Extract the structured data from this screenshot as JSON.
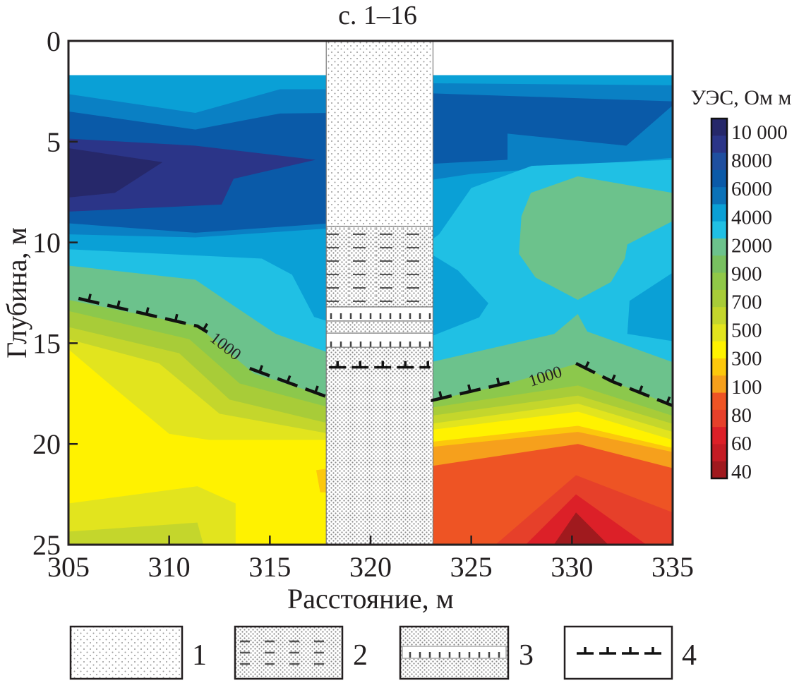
{
  "chart_data": {
    "type": "heatmap",
    "subtype": "filled-contour-section",
    "title": "с. 1–16",
    "xlabel": "Расстояние, м",
    "ylabel": "Глубина, м",
    "xlim": [
      305,
      335
    ],
    "ylim": [
      0,
      25
    ],
    "y_inverted": true,
    "xticks": [
      "305",
      "310",
      "315",
      "320",
      "325",
      "330",
      "335"
    ],
    "xtick_values": [
      305,
      310,
      315,
      320,
      325,
      330,
      335
    ],
    "yticks": [
      "0",
      "5",
      "10",
      "15",
      "20",
      "25"
    ],
    "ytick_values": [
      0,
      5,
      10,
      15,
      20,
      25
    ],
    "colorbar": {
      "title": "УЭС, Ом м",
      "labels": [
        "10 000",
        "8000",
        "6000",
        "4000",
        "2000",
        "900",
        "700",
        "500",
        "300",
        "100",
        "80",
        "60",
        "40"
      ],
      "colors": [
        "#26286a",
        "#2b3588",
        "#1f4f9f",
        "#0a5aa8",
        "#0b72b8",
        "#0aa0d6",
        "#20c0e4",
        "#6cc28c",
        "#78c060",
        "#90c848",
        "#a8cc38",
        "#c4d62c",
        "#e2e41e",
        "#fff200",
        "#fcc80c",
        "#f6a01c",
        "#ee5424",
        "#e6402a",
        "#dc2028",
        "#c41c24",
        "#a01a1e"
      ]
    },
    "level_colors": {
      "10000": "#26286a",
      "8000": "#2b3588",
      "6000": "#0a5aa8",
      "4000": "#0a80c4",
      "3000": "#0aa0d6",
      "2000": "#20c0e4",
      "1500": "#6cc28c",
      "900": "#8cc84c",
      "700": "#a8cc38",
      "600": "#c4d62c",
      "500": "#e2e41e",
      "400": "#fff200",
      "300": "#fcc80c",
      "200": "#f6a01c",
      "100": "#ee5424",
      "80": "#e6402a",
      "60": "#dc2028",
      "40": "#a01a1e"
    },
    "regions": [
      {
        "level": "3000",
        "points": [
          [
            305,
            1.7
          ],
          [
            318,
            1.7
          ],
          [
            318,
            25
          ],
          [
            305,
            25
          ]
        ]
      },
      {
        "level": "4000",
        "points": [
          [
            305,
            2.64
          ],
          [
            311.3,
            3.57
          ],
          [
            315.5,
            2.4
          ],
          [
            318,
            2.4
          ],
          [
            318,
            25
          ],
          [
            305,
            25
          ]
        ]
      },
      {
        "level": "6000",
        "points": [
          [
            305,
            3.5
          ],
          [
            311.3,
            4.4
          ],
          [
            315.5,
            3.6
          ],
          [
            318,
            3.57
          ],
          [
            318,
            25
          ],
          [
            305,
            25
          ]
        ]
      },
      {
        "level": "8000",
        "points": [
          [
            305,
            4.85
          ],
          [
            311.3,
            5.2
          ],
          [
            317.27,
            5.9
          ],
          [
            313.2,
            6.84
          ],
          [
            312.6,
            8.12
          ],
          [
            305,
            8.47
          ]
        ]
      },
      {
        "level": "10000",
        "points": [
          [
            305,
            5.32
          ],
          [
            309.67,
            6.02
          ],
          [
            307.3,
            7.54
          ],
          [
            305,
            7.77
          ]
        ]
      },
      {
        "level": "4000",
        "points": [
          [
            305,
            9.05
          ],
          [
            311.3,
            9.52
          ],
          [
            318,
            9.05
          ],
          [
            318,
            25
          ],
          [
            305,
            25
          ]
        ]
      },
      {
        "level": "3000",
        "points": [
          [
            305,
            9.6
          ],
          [
            311.3,
            9.75
          ],
          [
            318,
            9.3
          ],
          [
            318,
            25
          ],
          [
            305,
            25
          ]
        ]
      },
      {
        "level": "2000",
        "points": [
          [
            305,
            10.34
          ],
          [
            314.6,
            10.8
          ],
          [
            316.1,
            11.6
          ],
          [
            317.2,
            13.7
          ],
          [
            318,
            13.95
          ],
          [
            318,
            25
          ],
          [
            305,
            25
          ]
        ]
      },
      {
        "level": "1500",
        "points": [
          [
            305,
            11.15
          ],
          [
            311.3,
            11.85
          ],
          [
            313.2,
            13.14
          ],
          [
            315.3,
            14.54
          ],
          [
            318,
            15.5
          ],
          [
            318,
            25
          ],
          [
            305,
            25
          ]
        ]
      },
      {
        "level": "900",
        "points": [
          [
            305,
            12.85
          ],
          [
            311.4,
            14.15
          ],
          [
            314.2,
            16.5
          ],
          [
            318,
            17.7
          ],
          [
            318,
            25
          ],
          [
            305,
            25
          ]
        ]
      },
      {
        "level": "700",
        "points": [
          [
            305,
            13.4
          ],
          [
            311,
            14.8
          ],
          [
            313.5,
            17
          ],
          [
            318,
            18.2
          ],
          [
            318,
            25
          ],
          [
            305,
            25
          ]
        ]
      },
      {
        "level": "600",
        "points": [
          [
            305,
            14.2
          ],
          [
            310.5,
            15.5
          ],
          [
            313,
            17.8
          ],
          [
            318,
            19
          ],
          [
            318,
            25
          ],
          [
            305,
            25
          ]
        ]
      },
      {
        "level": "500",
        "points": [
          [
            305,
            14.8
          ],
          [
            309.5,
            16
          ],
          [
            312.5,
            18.5
          ],
          [
            318,
            19.5
          ],
          [
            318,
            25
          ],
          [
            305,
            25
          ]
        ]
      },
      {
        "level": "400",
        "points": [
          [
            305,
            15.3
          ],
          [
            307,
            17
          ],
          [
            310,
            19.5
          ],
          [
            312,
            19.8
          ],
          [
            318,
            19.8
          ],
          [
            318,
            25
          ],
          [
            305,
            25
          ]
        ]
      },
      {
        "level": "300",
        "points": [
          [
            317.3,
            21.3
          ],
          [
            318,
            21.2
          ],
          [
            318,
            22.4
          ],
          [
            317.5,
            22.4
          ]
        ]
      },
      {
        "level": "500",
        "points": [
          [
            305,
            22.95
          ],
          [
            311.4,
            22.1
          ],
          [
            313.3,
            22.95
          ],
          [
            313.3,
            25
          ],
          [
            305,
            25
          ]
        ]
      },
      {
        "level": "600",
        "points": [
          [
            305,
            24.35
          ],
          [
            311.4,
            23.9
          ],
          [
            311.7,
            25
          ],
          [
            305,
            25
          ]
        ]
      },
      {
        "level": "3000",
        "points": [
          [
            323,
            1.7
          ],
          [
            335,
            1.7
          ],
          [
            335,
            25
          ],
          [
            323,
            25
          ]
        ]
      },
      {
        "level": "4000",
        "points": [
          [
            323,
            2.1
          ],
          [
            335,
            2.2
          ],
          [
            335,
            25
          ],
          [
            323,
            25
          ]
        ]
      },
      {
        "level": "6000",
        "points": [
          [
            323,
            2.6
          ],
          [
            335,
            3.0
          ],
          [
            335,
            3.2
          ],
          [
            332.7,
            5.2
          ],
          [
            326.8,
            4.6
          ],
          [
            326.8,
            5.9
          ],
          [
            323,
            6.1
          ]
        ]
      },
      {
        "level": "3000",
        "points": [
          [
            323,
            6.9
          ],
          [
            325,
            6.6
          ],
          [
            329,
            6.3
          ],
          [
            335,
            5.8
          ],
          [
            335,
            25
          ],
          [
            323,
            25
          ]
        ]
      },
      {
        "level": "2000",
        "points": [
          [
            323,
            9.9
          ],
          [
            323.4,
            9.6
          ],
          [
            325,
            7.3
          ],
          [
            328,
            6.2
          ],
          [
            335,
            5.9
          ],
          [
            335,
            25
          ],
          [
            323,
            25
          ]
        ]
      },
      {
        "level": "1500",
        "points": [
          [
            327.96,
            7.54
          ],
          [
            330.29,
            6.72
          ],
          [
            335,
            7.54
          ],
          [
            335,
            8.94
          ],
          [
            332.75,
            10.1
          ],
          [
            332.63,
            10.8
          ],
          [
            331.93,
            11.97
          ],
          [
            330.29,
            12.85
          ],
          [
            328.19,
            11.74
          ],
          [
            327.37,
            10.57
          ],
          [
            327.49,
            8.7
          ]
        ]
      },
      {
        "level": "3000",
        "points": [
          [
            323,
            10.57
          ],
          [
            324.34,
            11.39
          ],
          [
            325.85,
            13.02
          ],
          [
            325.39,
            13.72
          ],
          [
            323,
            14.66
          ]
        ]
      },
      {
        "level": "3000",
        "points": [
          [
            335,
            11.5
          ],
          [
            332.86,
            12.9
          ],
          [
            332.75,
            14.54
          ],
          [
            335,
            14.9
          ]
        ]
      },
      {
        "level": "1500",
        "points": [
          [
            323,
            15.94
          ],
          [
            329.12,
            14.54
          ],
          [
            330.29,
            13.55
          ],
          [
            330.76,
            14.42
          ],
          [
            335,
            15.94
          ],
          [
            335,
            25
          ],
          [
            323,
            25
          ]
        ]
      },
      {
        "level": "900",
        "points": [
          [
            323,
            17.85
          ],
          [
            326.5,
            17.1
          ],
          [
            330.3,
            16.0
          ],
          [
            332,
            16.9
          ],
          [
            335,
            18.1
          ],
          [
            335,
            25
          ],
          [
            323,
            25
          ]
        ]
      },
      {
        "level": "700",
        "points": [
          [
            323,
            18.2
          ],
          [
            330.3,
            17.1
          ],
          [
            335,
            18.6
          ],
          [
            335,
            25
          ],
          [
            323,
            25
          ]
        ]
      },
      {
        "level": "600",
        "points": [
          [
            323,
            18.6
          ],
          [
            330.3,
            17.6
          ],
          [
            335,
            19.0
          ],
          [
            335,
            25
          ],
          [
            323,
            25
          ]
        ]
      },
      {
        "level": "500",
        "points": [
          [
            323,
            19.0
          ],
          [
            330.3,
            18.0
          ],
          [
            335,
            19.4
          ],
          [
            335,
            25
          ],
          [
            323,
            25
          ]
        ]
      },
      {
        "level": "400",
        "points": [
          [
            323,
            19.3
          ],
          [
            330.3,
            18.4
          ],
          [
            335,
            19.8
          ],
          [
            335,
            25
          ],
          [
            323,
            25
          ]
        ]
      },
      {
        "level": "300",
        "points": [
          [
            323,
            19.9
          ],
          [
            330.3,
            19.1
          ],
          [
            335,
            20.2
          ],
          [
            335,
            25
          ],
          [
            323,
            25
          ]
        ]
      },
      {
        "level": "200",
        "points": [
          [
            323,
            20.15
          ],
          [
            330.3,
            19.4
          ],
          [
            335,
            20.4
          ],
          [
            335,
            25
          ],
          [
            323,
            25
          ]
        ]
      },
      {
        "level": "100",
        "points": [
          [
            323,
            21.1
          ],
          [
            330.3,
            20.0
          ],
          [
            335,
            21.2
          ],
          [
            335,
            25
          ],
          [
            323,
            25
          ]
        ]
      },
      {
        "level": "80",
        "points": [
          [
            326.2,
            25
          ],
          [
            330.2,
            21.55
          ],
          [
            335,
            23.4
          ],
          [
            335,
            25
          ]
        ]
      },
      {
        "level": "60",
        "points": [
          [
            327.7,
            25
          ],
          [
            330.2,
            22.5
          ],
          [
            333.7,
            25
          ]
        ]
      },
      {
        "level": "40",
        "points": [
          [
            329.1,
            25
          ],
          [
            330.2,
            23.4
          ],
          [
            331.8,
            25
          ]
        ]
      }
    ],
    "contour_1000": {
      "label": "1000",
      "segments": [
        [
          [
            305.5,
            12.78
          ],
          [
            311.4,
            14.15
          ],
          [
            311.9,
            14.45
          ]
        ],
        [
          [
            314.0,
            16.25
          ],
          [
            317.8,
            17.65
          ]
        ],
        [
          [
            323,
            17.85
          ],
          [
            327.3,
            16.85
          ]
        ],
        [
          [
            330.2,
            16.0
          ],
          [
            332,
            16.9
          ],
          [
            335,
            18.1
          ]
        ]
      ]
    },
    "borehole": {
      "x_range": [
        317.8,
        323.1
      ],
      "layers": [
        {
          "type": "1",
          "top": 0,
          "bottom": 9.2
        },
        {
          "type": "2",
          "top": 9.2,
          "bottom": 13.2
        },
        {
          "type": "3",
          "top": 13.2,
          "bottom": 13.9
        },
        {
          "type": "dense",
          "top": 13.9,
          "bottom": 14.5
        },
        {
          "type": "3",
          "top": 14.5,
          "bottom": 15.2
        },
        {
          "type": "dense",
          "top": 15.2,
          "bottom": 25
        }
      ],
      "boundary_4_depth": 16.2
    },
    "legend": [
      "1",
      "2",
      "3",
      "4"
    ]
  }
}
